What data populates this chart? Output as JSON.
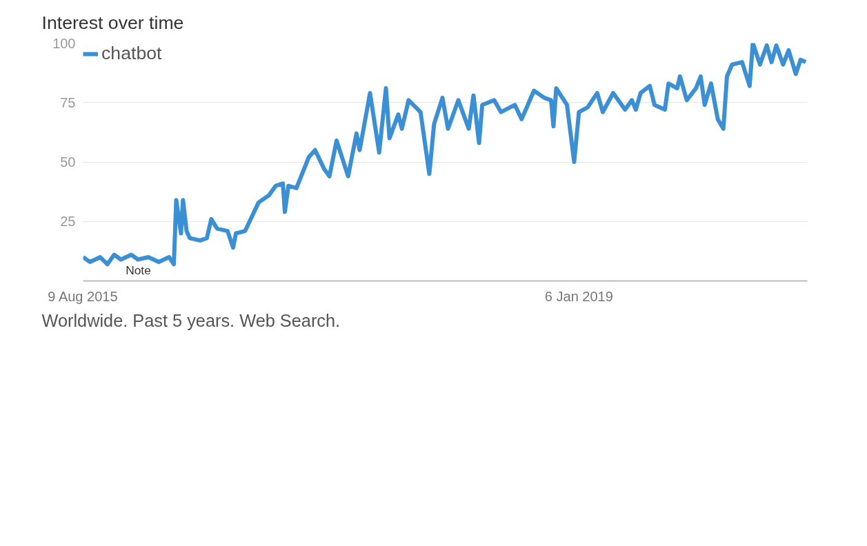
{
  "chart_data": {
    "type": "line",
    "title": "Interest over time",
    "x": [
      "2015-08-09",
      "2015-08-26",
      "2015-09-21",
      "2015-10-09",
      "2015-10-26",
      "2015-11-12",
      "2015-12-08",
      "2015-12-25",
      "2016-01-20",
      "2016-02-15",
      "2016-03-12",
      "2016-03-24",
      "2016-03-30",
      "2016-04-11",
      "2016-04-16",
      "2016-04-25",
      "2016-05-03",
      "2016-05-29",
      "2016-06-15",
      "2016-06-26",
      "2016-07-11",
      "2016-08-06",
      "2016-08-20",
      "2016-08-27",
      "2016-09-19",
      "2016-10-23",
      "2016-11-18",
      "2016-12-05",
      "2016-12-23",
      "2016-12-28",
      "2017-01-06",
      "2017-01-26",
      "2017-02-07",
      "2017-02-26",
      "2017-03-14",
      "2017-04-06",
      "2017-04-19",
      "2017-05-07",
      "2017-06-05",
      "2017-06-26",
      "2017-07-04",
      "2017-07-30",
      "2017-08-22",
      "2017-09-08",
      "2017-09-17",
      "2017-10-09",
      "2017-10-18",
      "2017-11-04",
      "2017-12-04",
      "2017-12-26",
      "2018-01-07",
      "2018-01-28",
      "2018-02-11",
      "2018-03-09",
      "2018-04-04",
      "2018-04-16",
      "2018-04-30",
      "2018-05-08",
      "2018-06-07",
      "2018-06-24",
      "2018-07-29",
      "2018-08-15",
      "2018-09-15",
      "2018-10-11",
      "2018-10-28",
      "2018-11-03",
      "2018-11-10",
      "2018-12-07",
      "2018-12-25",
      "2019-01-06",
      "2019-01-28",
      "2019-02-21",
      "2019-03-07",
      "2019-04-02",
      "2019-05-02",
      "2019-05-19",
      "2019-05-29",
      "2019-06-10",
      "2019-07-03",
      "2019-07-15",
      "2019-08-10",
      "2019-08-19",
      "2019-09-10",
      "2019-09-17",
      "2019-10-04",
      "2019-10-27",
      "2019-11-08",
      "2019-11-18",
      "2019-12-04",
      "2019-12-21",
      "2020-01-04",
      "2020-01-13",
      "2020-01-26",
      "2020-02-20",
      "2020-03-10",
      "2020-03-18",
      "2020-04-05",
      "2020-04-22",
      "2020-05-04",
      "2020-05-16",
      "2020-06-02",
      "2020-06-16",
      "2020-07-04",
      "2020-07-16",
      "2020-07-29"
    ],
    "series": [
      {
        "name": "chatbot",
        "color": "#3b8fd4",
        "values": [
          10,
          8,
          10,
          7,
          11,
          9,
          11,
          9,
          10,
          8,
          10,
          7,
          34,
          20,
          34,
          21,
          18,
          17,
          18,
          26,
          22,
          21,
          14,
          20,
          21,
          33,
          36,
          40,
          41,
          29,
          40,
          39,
          44,
          52,
          55,
          47,
          44,
          59,
          44,
          62,
          55,
          79,
          54,
          81,
          60,
          70,
          64,
          76,
          71,
          45,
          66,
          77,
          64,
          76,
          64,
          78,
          58,
          74,
          76,
          71,
          74,
          68,
          80,
          77,
          76,
          65,
          81,
          74,
          50,
          71,
          73,
          79,
          71,
          79,
          72,
          76,
          72,
          79,
          82,
          74,
          72,
          83,
          81,
          86,
          76,
          81,
          86,
          74,
          83,
          68,
          64,
          86,
          91,
          92,
          82,
          100,
          91,
          99,
          92,
          99,
          91,
          97,
          87,
          93,
          92
        ]
      }
    ],
    "xlim": [
      "2015-08-09",
      "2020-08-02"
    ],
    "xticks": [
      {
        "value": "2015-08-09",
        "label": "9 Aug 2015"
      },
      {
        "value": "2019-01-06",
        "label": "6 Jan 2019"
      }
    ],
    "ylim": [
      0,
      100
    ],
    "yticks": [
      25,
      50,
      75,
      100
    ],
    "grid": "y",
    "legend": "top left",
    "marker": "none",
    "line_style": "solid",
    "annotations": [
      "Note",
      "Worldwide. Past 5 years. Web Search."
    ]
  }
}
